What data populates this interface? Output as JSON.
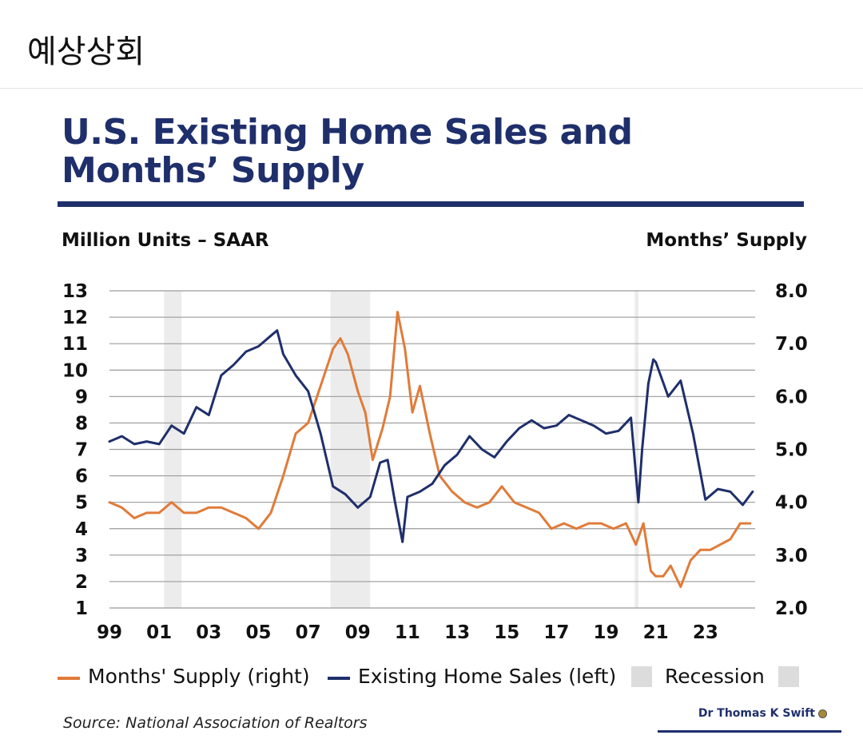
{
  "header": {
    "caption": "예상상회"
  },
  "source": "Source: National Association of Realtors",
  "author": "Dr Thomas K Swift",
  "colors": {
    "navy": "#1f2f6b",
    "orange": "#e07b39",
    "recession": "#dcdcdc"
  },
  "chart_data": {
    "type": "line",
    "title": "U.S. Existing Home Sales and Months’ Supply",
    "ylabel_left": "Million Units – SAAR",
    "ylabel_right": "Months’ Supply",
    "ylim_left": [
      1,
      13
    ],
    "ylim_right": [
      2.0,
      8.0
    ],
    "xlim": [
      1999,
      2025
    ],
    "yticks_left": [
      "1",
      "2",
      "3",
      "4",
      "5",
      "6",
      "7",
      "8",
      "9",
      "10",
      "11",
      "12",
      "13"
    ],
    "yticks_right": [
      "2.0",
      "3.0",
      "4.0",
      "5.0",
      "6.0",
      "7.0",
      "8.0"
    ],
    "xticks": [
      "99",
      "01",
      "03",
      "05",
      "07",
      "09",
      "11",
      "13",
      "15",
      "17",
      "19",
      "21",
      "23"
    ],
    "grid": true,
    "legend": {
      "position": "bottom",
      "items": [
        "Months' Supply (right)",
        "Existing Home Sales (left)",
        "Recession"
      ]
    },
    "recessions": [
      [
        2001.2,
        2001.9
      ],
      [
        2007.9,
        2009.5
      ],
      [
        2020.15,
        2020.3
      ]
    ],
    "series": [
      {
        "name": "Existing Home Sales (left)",
        "axis": "left",
        "color": "#1f2f6b",
        "x": [
          1999.0,
          1999.5,
          2000.0,
          2000.5,
          2001.0,
          2001.5,
          2002.0,
          2002.5,
          2003.0,
          2003.5,
          2004.0,
          2004.5,
          2005.0,
          2005.5,
          2005.75,
          2006.0,
          2006.5,
          2007.0,
          2007.5,
          2008.0,
          2008.5,
          2009.0,
          2009.5,
          2009.9,
          2010.2,
          2010.5,
          2010.8,
          2011.0,
          2011.5,
          2012.0,
          2012.5,
          2013.0,
          2013.5,
          2014.0,
          2014.5,
          2015.0,
          2015.5,
          2016.0,
          2016.5,
          2017.0,
          2017.5,
          2018.0,
          2018.5,
          2019.0,
          2019.5,
          2020.0,
          2020.3,
          2020.45,
          2020.7,
          2020.9,
          2021.0,
          2021.5,
          2022.0,
          2022.5,
          2023.0,
          2023.5,
          2024.0,
          2024.5,
          2024.9
        ],
        "y": [
          7.3,
          7.5,
          7.2,
          7.3,
          7.2,
          7.9,
          7.6,
          8.6,
          8.3,
          9.8,
          10.2,
          10.7,
          10.9,
          11.3,
          11.5,
          10.6,
          9.8,
          9.2,
          7.6,
          5.6,
          5.3,
          4.8,
          5.2,
          6.5,
          6.6,
          5.0,
          3.5,
          5.2,
          5.4,
          5.7,
          6.4,
          6.8,
          7.5,
          7.0,
          6.7,
          7.3,
          7.8,
          8.1,
          7.8,
          7.9,
          8.3,
          8.1,
          7.9,
          7.6,
          7.7,
          8.2,
          5.0,
          7.0,
          9.5,
          10.4,
          10.3,
          9.0,
          9.6,
          7.6,
          5.1,
          5.5,
          5.4,
          4.9,
          5.4
        ]
      },
      {
        "name": "Months' Supply (right)",
        "axis": "right",
        "color": "#e07b39",
        "x": [
          1999.0,
          1999.5,
          2000.0,
          2000.5,
          2001.0,
          2001.5,
          2002.0,
          2002.5,
          2003.0,
          2003.5,
          2004.0,
          2004.5,
          2005.0,
          2005.5,
          2006.0,
          2006.5,
          2007.0,
          2007.5,
          2008.0,
          2008.3,
          2008.6,
          2009.0,
          2009.3,
          2009.6,
          2010.0,
          2010.3,
          2010.6,
          2010.9,
          2011.2,
          2011.5,
          2011.9,
          2012.3,
          2012.8,
          2013.3,
          2013.8,
          2014.3,
          2014.8,
          2015.3,
          2015.8,
          2016.3,
          2016.8,
          2017.3,
          2017.8,
          2018.3,
          2018.8,
          2019.3,
          2019.8,
          2020.2,
          2020.5,
          2020.8,
          2021.0,
          2021.3,
          2021.6,
          2022.0,
          2022.4,
          2022.8,
          2023.2,
          2023.6,
          2024.0,
          2024.4,
          2024.8
        ],
        "y": [
          4.0,
          3.9,
          3.7,
          3.8,
          3.8,
          4.0,
          3.8,
          3.8,
          3.9,
          3.9,
          3.8,
          3.7,
          3.5,
          3.8,
          4.5,
          5.3,
          5.5,
          6.2,
          6.9,
          7.1,
          6.8,
          6.1,
          5.7,
          4.8,
          5.4,
          6.0,
          7.6,
          6.9,
          5.7,
          6.2,
          5.3,
          4.5,
          4.2,
          4.0,
          3.9,
          4.0,
          4.3,
          4.0,
          3.9,
          3.8,
          3.5,
          3.6,
          3.5,
          3.6,
          3.6,
          3.5,
          3.6,
          3.2,
          3.6,
          2.7,
          2.6,
          2.6,
          2.8,
          2.4,
          2.9,
          3.1,
          3.1,
          3.2,
          3.3,
          3.6,
          3.6
        ]
      }
    ]
  }
}
